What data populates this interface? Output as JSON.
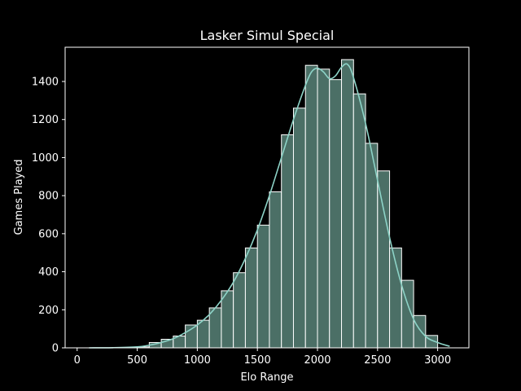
{
  "chart_data": {
    "type": "bar",
    "title": "Lasker Simul Special",
    "xlabel": "Elo Range",
    "ylabel": "Games Played",
    "xlim": [
      -100,
      3260
    ],
    "ylim": [
      0,
      1580
    ],
    "xticks": [
      0,
      500,
      1000,
      1500,
      2000,
      2500,
      3000
    ],
    "yticks": [
      0,
      200,
      400,
      600,
      800,
      1000,
      1200,
      1400
    ],
    "grid": false,
    "legend": "none",
    "bin_width": 100,
    "bins": [
      {
        "x0": 500,
        "value": 5
      },
      {
        "x0": 600,
        "value": 28
      },
      {
        "x0": 700,
        "value": 45
      },
      {
        "x0": 800,
        "value": 62
      },
      {
        "x0": 900,
        "value": 120
      },
      {
        "x0": 1000,
        "value": 145
      },
      {
        "x0": 1100,
        "value": 210
      },
      {
        "x0": 1200,
        "value": 300
      },
      {
        "x0": 1300,
        "value": 395
      },
      {
        "x0": 1400,
        "value": 525
      },
      {
        "x0": 1500,
        "value": 645
      },
      {
        "x0": 1600,
        "value": 820
      },
      {
        "x0": 1700,
        "value": 1120
      },
      {
        "x0": 1800,
        "value": 1260
      },
      {
        "x0": 1900,
        "value": 1485
      },
      {
        "x0": 2000,
        "value": 1465
      },
      {
        "x0": 2100,
        "value": 1410
      },
      {
        "x0": 2200,
        "value": 1515
      },
      {
        "x0": 2300,
        "value": 1335
      },
      {
        "x0": 2400,
        "value": 1075
      },
      {
        "x0": 2500,
        "value": 930
      },
      {
        "x0": 2600,
        "value": 525
      },
      {
        "x0": 2700,
        "value": 355
      },
      {
        "x0": 2800,
        "value": 170
      },
      {
        "x0": 2900,
        "value": 65
      }
    ],
    "kde_curve": [
      [
        100,
        0
      ],
      [
        300,
        1
      ],
      [
        500,
        5
      ],
      [
        600,
        14
      ],
      [
        700,
        28
      ],
      [
        800,
        48
      ],
      [
        900,
        80
      ],
      [
        1000,
        120
      ],
      [
        1100,
        175
      ],
      [
        1200,
        250
      ],
      [
        1300,
        345
      ],
      [
        1400,
        470
      ],
      [
        1500,
        620
      ],
      [
        1600,
        800
      ],
      [
        1700,
        1000
      ],
      [
        1800,
        1200
      ],
      [
        1900,
        1380
      ],
      [
        1950,
        1450
      ],
      [
        2000,
        1470
      ],
      [
        2050,
        1450
      ],
      [
        2100,
        1415
      ],
      [
        2150,
        1430
      ],
      [
        2200,
        1475
      ],
      [
        2250,
        1490
      ],
      [
        2300,
        1420
      ],
      [
        2400,
        1180
      ],
      [
        2500,
        880
      ],
      [
        2600,
        580
      ],
      [
        2700,
        330
      ],
      [
        2800,
        150
      ],
      [
        2900,
        60
      ],
      [
        3000,
        28
      ],
      [
        3100,
        8
      ]
    ],
    "colors": {
      "background": "#000000",
      "bar_fill": "#4b6f66",
      "bar_edge": "#ffffff",
      "kde_line": "#8dd3c7",
      "axes": "#ffffff"
    }
  }
}
